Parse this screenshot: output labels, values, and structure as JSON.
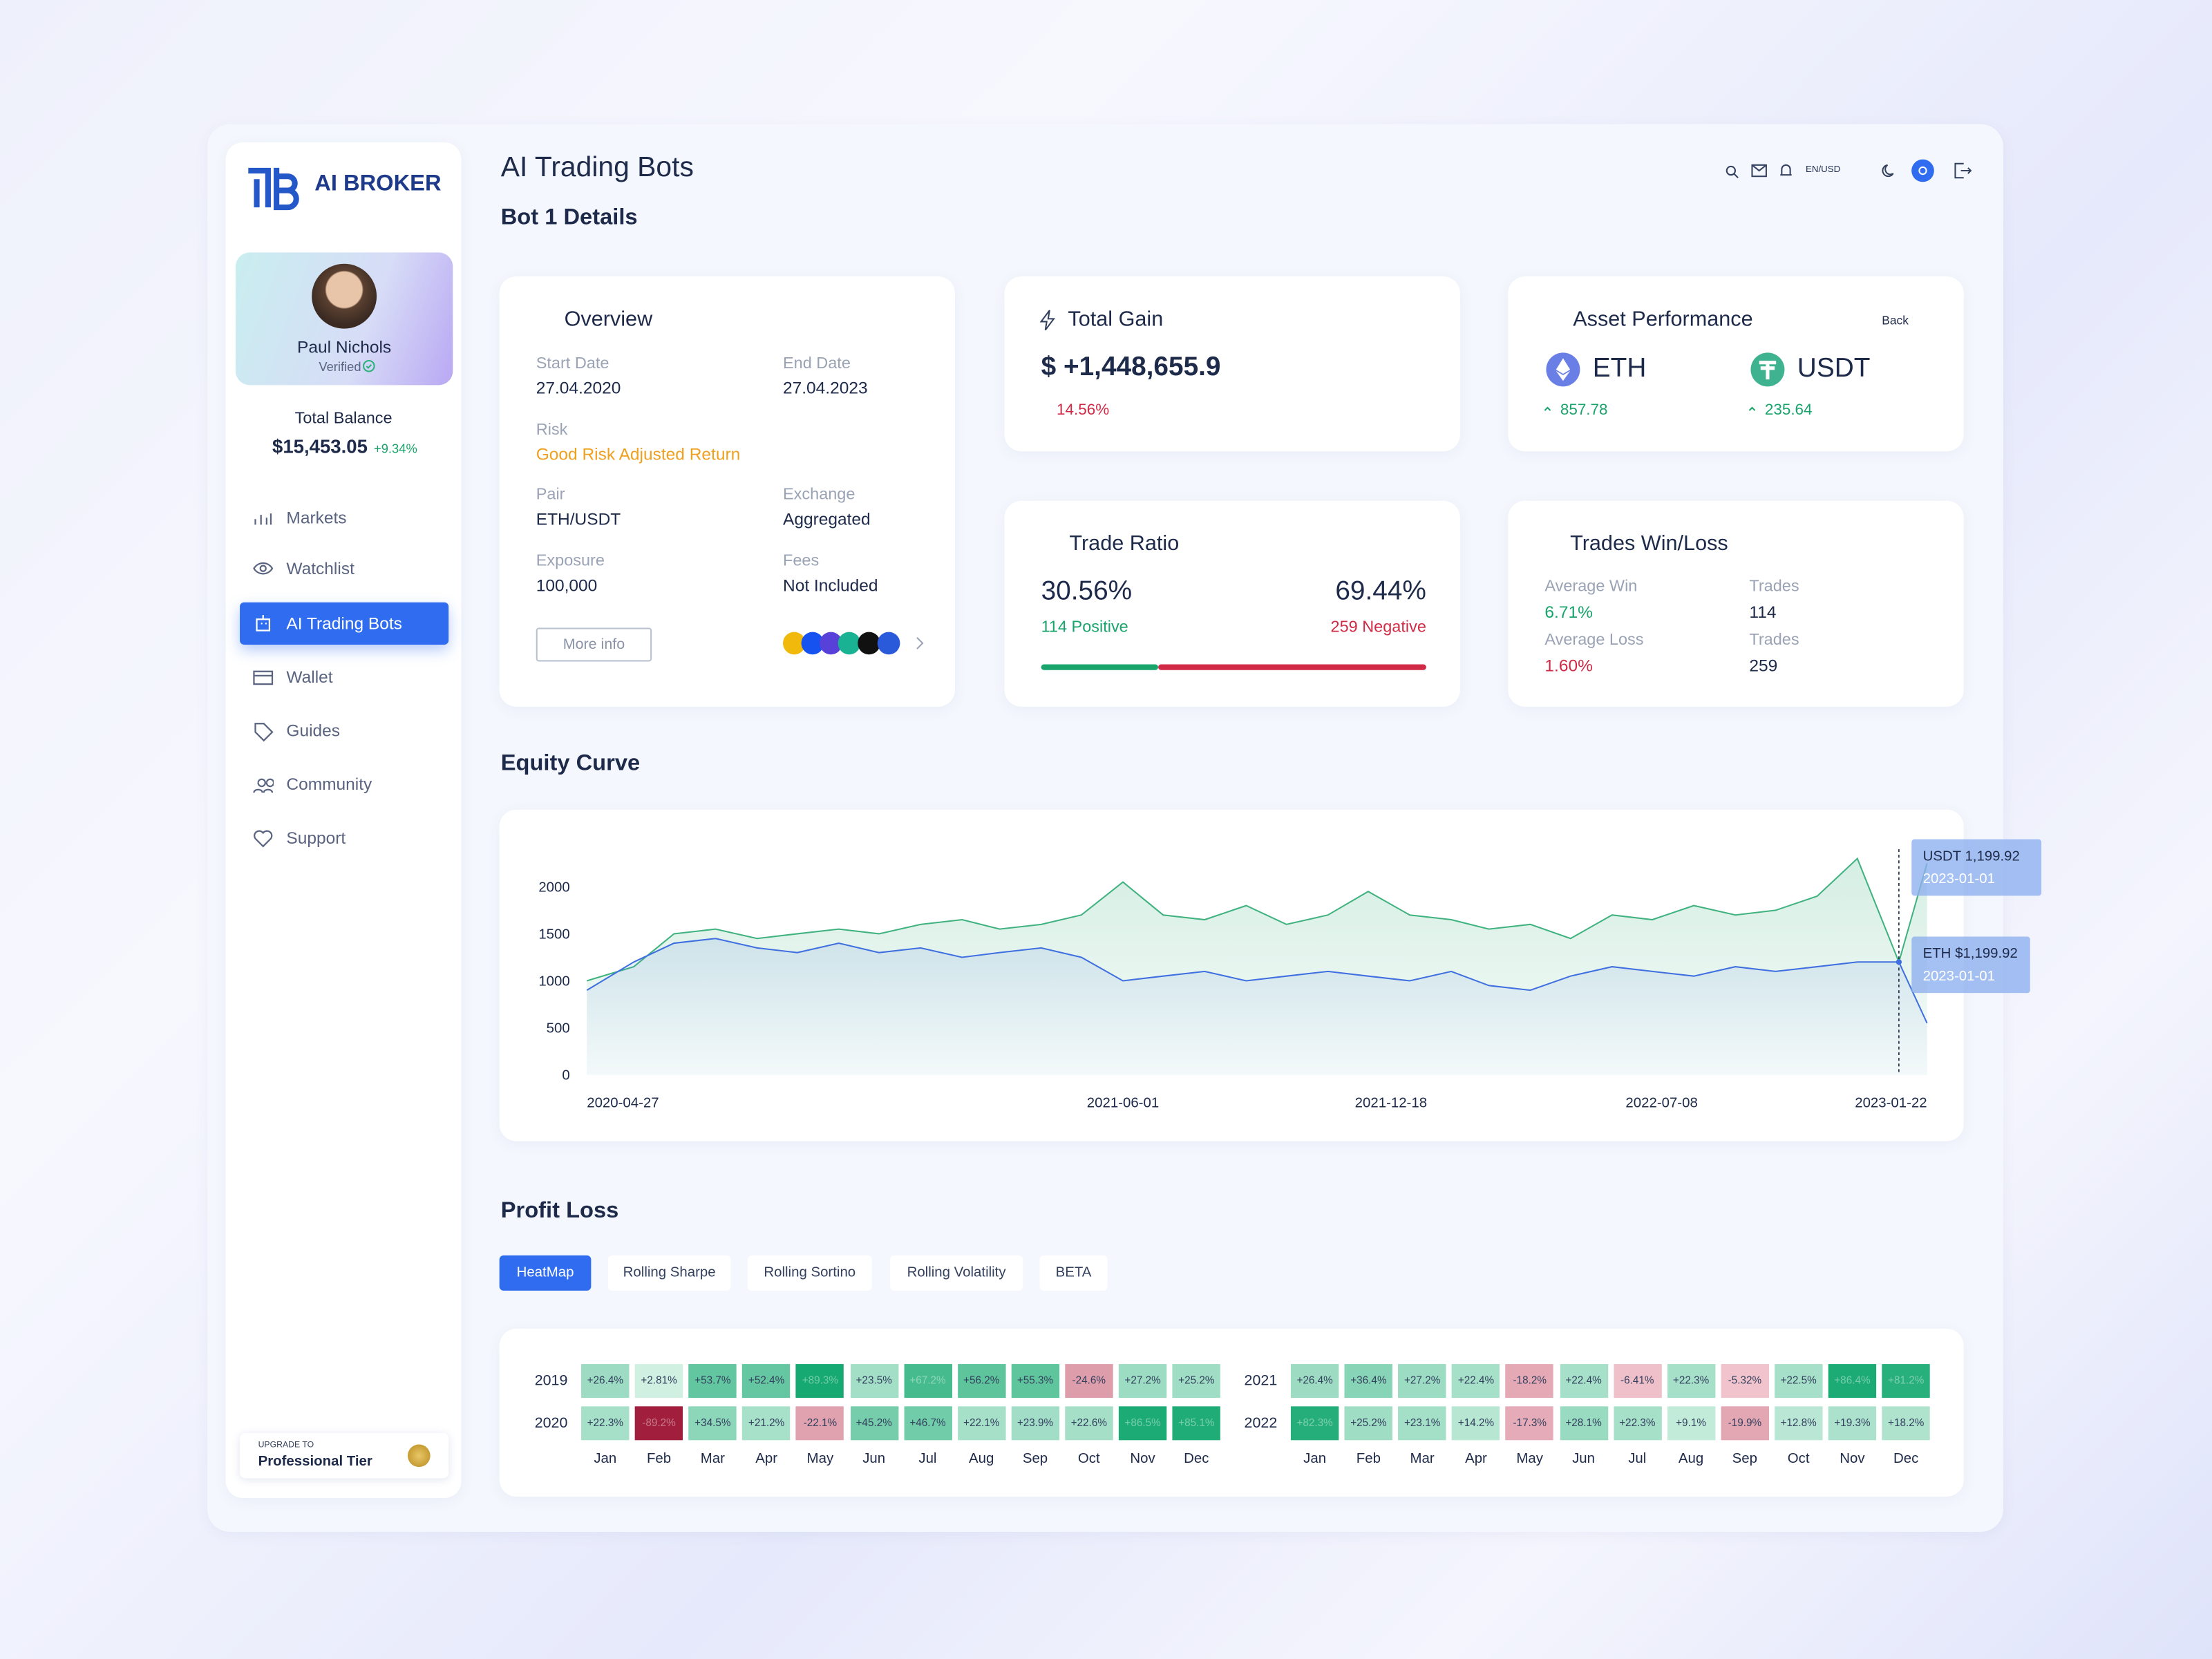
{
  "sidebar": {
    "brand": "AI BROKER",
    "user": {
      "name": "Paul Nichols",
      "status": "Verified"
    },
    "balance": {
      "label": "Total Balance",
      "amount": "$15,453.05",
      "change": "+9.34%"
    },
    "nav": [
      "Markets",
      "Watchlist",
      "AI Trading Bots",
      "Wallet",
      "Guides",
      "Community",
      "Support"
    ],
    "upgrade": {
      "kicker": "UPGRADE TO",
      "tier": "Professional Tier"
    }
  },
  "header": {
    "title": "AI Trading Bots",
    "subtitle": "Bot 1 Details",
    "locale": "EN/USD"
  },
  "overview": {
    "title": "Overview",
    "fields": [
      {
        "label": "Start Date",
        "value": "27.04.2020"
      },
      {
        "label": "End Date",
        "value": "27.04.2023"
      },
      {
        "label": "Risk",
        "value": "Good Risk Adjusted Return"
      },
      {
        "label": "Pair",
        "value": "ETH/USDT"
      },
      {
        "label": "Exchange",
        "value": "Aggregated"
      },
      {
        "label": "Exposure",
        "value": "100,000"
      },
      {
        "label": "Fees",
        "value": "Not Included"
      }
    ],
    "button": "More info"
  },
  "total_gain": {
    "title": "Total Gain",
    "amount": "$ +1,448,655.9",
    "change": "14.56%"
  },
  "asset_performance": {
    "title": "Asset Performance",
    "back": "Back",
    "assets": [
      {
        "name": "ETH",
        "value": "857.78"
      },
      {
        "name": "USDT",
        "value": "235.64"
      }
    ]
  },
  "trade_ratio": {
    "title": "Trade Ratio",
    "positive": {
      "value": 30.56,
      "label": "30.56%"
    },
    "positive_text": "114 Positive",
    "negative": {
      "value": 69.44,
      "label": "69.44%"
    },
    "negative_text": "259 Negative"
  },
  "win_loss": {
    "title": "Trades Win/Loss",
    "rows": [
      {
        "label": "Average Win",
        "value": "6.71%",
        "trades_label": "Trades",
        "trades": "114"
      },
      {
        "label": "Average Loss",
        "value": "1.60%",
        "trades_label": "Trades",
        "trades": "259"
      }
    ]
  },
  "chart_data": {
    "type": "area",
    "title": "Equity Curve",
    "x": [
      "2020-04-27",
      "2020-06-01",
      "2020-07-01",
      "2020-08-01",
      "2020-09-01",
      "2020-10-01",
      "2020-11-01",
      "2020-12-01",
      "2021-01-01",
      "2021-02-01",
      "2021-03-01",
      "2021-04-01",
      "2021-05-01",
      "2021-06-01",
      "2021-07-01",
      "2021-08-01",
      "2021-09-01",
      "2021-10-01",
      "2021-11-01",
      "2021-12-01",
      "2022-01-01",
      "2022-02-01",
      "2022-03-01",
      "2022-04-01",
      "2022-05-01",
      "2022-06-01",
      "2022-07-01",
      "2022-08-01",
      "2022-09-01",
      "2022-10-01",
      "2022-11-01",
      "2022-12-01",
      "2023-01-01",
      "2023-01-22"
    ],
    "series": [
      {
        "color": "#3fb27f",
        "values": [
          1000,
          1150,
          1500,
          1550,
          1450,
          1500,
          1550,
          1500,
          1600,
          1650,
          1550,
          1600,
          1700,
          2050,
          1700,
          1650,
          1800,
          1600,
          1700,
          1950,
          1700,
          1650,
          1550,
          1600,
          1450,
          1700,
          1650,
          1800,
          1700,
          1750,
          1900,
          2300,
          1199.92,
          2250
        ]
      },
      {
        "color": "#3f6fe0",
        "values": [
          900,
          1200,
          1400,
          1450,
          1350,
          1300,
          1400,
          1300,
          1350,
          1250,
          1300,
          1350,
          1250,
          1000,
          1050,
          1100,
          1000,
          1050,
          1100,
          1050,
          1000,
          1100,
          950,
          900,
          1050,
          1150,
          1100,
          1050,
          1150,
          1100,
          1150,
          1200,
          1199.92,
          550
        ]
      }
    ],
    "xlim": [
      "2020-04-27",
      "2023-01-22"
    ],
    "xticks": [
      "2020-04-27",
      "2021-06-01",
      "2021-12-18",
      "2022-07-08",
      "2023-01-22"
    ],
    "ylim": [
      0,
      2400
    ],
    "yticks": [
      0,
      500,
      1000,
      1500,
      2000
    ],
    "tooltips": [
      {
        "label": "USDT 1,199.92",
        "date": "2023-01-01"
      },
      {
        "label": "ETH $1,199.92",
        "date": "2023-01-01"
      }
    ]
  },
  "profit_loss": {
    "title": "Profit Loss",
    "tabs": [
      "HeatMap",
      "Rolling Sharpe",
      "Rolling Sortino",
      "Rolling Volatility",
      "BETA"
    ],
    "months": [
      "Jan",
      "Feb",
      "Mar",
      "Apr",
      "May",
      "Jun",
      "Jul",
      "Aug",
      "Sep",
      "Oct",
      "Nov",
      "Dec"
    ],
    "rows": [
      {
        "year": "2019",
        "values": [
          26.4,
          2.81,
          53.7,
          52.4,
          89.3,
          23.5,
          67.2,
          56.2,
          55.3,
          -24.6,
          27.2,
          25.2
        ],
        "value_labels": [
          "+26.4%",
          "+2.81%",
          "+53.7%",
          "+52.4%",
          "+89.3%",
          "+23.5%",
          "+67.2%",
          "+56.2%",
          "+55.3%",
          "-24.6%",
          "+27.2%",
          "+25.2%"
        ]
      },
      {
        "year": "2020",
        "values": [
          22.3,
          -89.2,
          34.5,
          21.2,
          -22.1,
          45.2,
          46.7,
          22.1,
          23.9,
          22.6,
          86.5,
          85.1
        ],
        "value_labels": [
          "+22.3%",
          "-89.2%",
          "+34.5%",
          "+21.2%",
          "-22.1%",
          "+45.2%",
          "+46.7%",
          "+22.1%",
          "+23.9%",
          "+22.6%",
          "+86.5%",
          "+85.1%"
        ]
      },
      {
        "year": "2021",
        "values": [
          26.4,
          36.4,
          27.2,
          22.4,
          -18.2,
          22.4,
          -6.41,
          22.3,
          -5.32,
          22.5,
          86.4,
          81.2
        ],
        "value_labels": [
          "+26.4%",
          "+36.4%",
          "+27.2%",
          "+22.4%",
          "-18.2%",
          "+22.4%",
          "-6.41%",
          "+22.3%",
          "-5.32%",
          "+22.5%",
          "+86.4%",
          "+81.2%"
        ]
      },
      {
        "year": "2022",
        "values": [
          82.3,
          25.2,
          23.1,
          14.2,
          -17.3,
          28.1,
          22.3,
          9.1,
          -19.9,
          12.8,
          19.3,
          18.2
        ],
        "value_labels": [
          "+82.3%",
          "+25.2%",
          "+23.1%",
          "+14.2%",
          "-17.3%",
          "+28.1%",
          "+22.3%",
          "+9.1%",
          "-19.9%",
          "+12.8%",
          "+19.3%",
          "+18.2%"
        ]
      }
    ]
  }
}
